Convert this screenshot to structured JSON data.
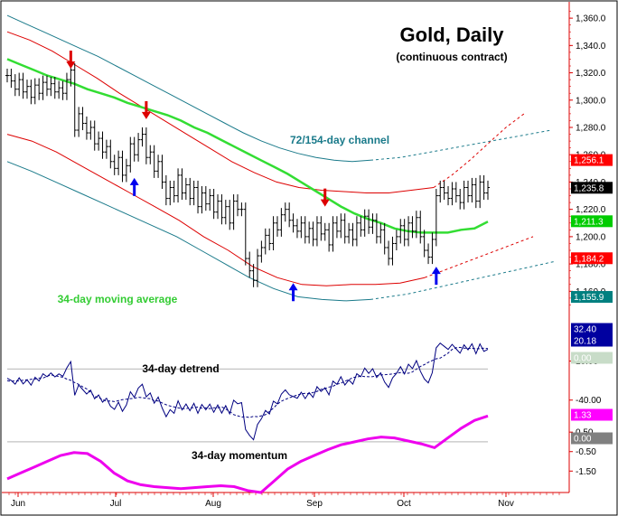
{
  "chart_data": {
    "type": "line",
    "title": "Gold, Daily",
    "subtitle": "(continuous contract)",
    "x_tick_labels": [
      "Jun",
      "Jul",
      "Aug",
      "Sep",
      "Oct",
      "Nov"
    ],
    "price_panel": {
      "ylim": [
        1145,
        1370
      ],
      "y_tick_labels": [
        "1,360.0",
        "1,340.0",
        "1,320.0",
        "1,300.0",
        "1,280.0",
        "1,260.0",
        "1,240.0",
        "1,220.0",
        "1,200.0",
        "1,180.0",
        "1,160.0"
      ],
      "y_ticks": [
        1360,
        1340,
        1320,
        1300,
        1280,
        1260,
        1240,
        1220,
        1200,
        1180,
        1160
      ],
      "annotations": {
        "channel": "72/154-day channel",
        "moving_average": "34-day moving average"
      },
      "value_tags": [
        {
          "text": "1,256.1",
          "value": 1256.1,
          "bg": "#ff0000",
          "fg": "#ffffff"
        },
        {
          "text": "1,235.8",
          "value": 1235.8,
          "bg": "#000000",
          "fg": "#ffffff"
        },
        {
          "text": "1,211.3",
          "value": 1211.3,
          "bg": "#00cc00",
          "fg": "#ffffff"
        },
        {
          "text": "1,184.2",
          "value": 1184.2,
          "bg": "#ff0000",
          "fg": "#ffffff"
        },
        {
          "text": "1,155.9",
          "value": 1155.9,
          "bg": "#008080",
          "fg": "#ffffff"
        }
      ],
      "ohlc_close": [
        1318,
        1314,
        1308,
        1315,
        1306,
        1310,
        1302,
        1311,
        1305,
        1313,
        1308,
        1312,
        1306,
        1309,
        1305,
        1315,
        1322,
        1278,
        1290,
        1283,
        1276,
        1280,
        1268,
        1272,
        1262,
        1266,
        1255,
        1250,
        1258,
        1245,
        1252,
        1268,
        1260,
        1271,
        1275,
        1258,
        1262,
        1248,
        1255,
        1240,
        1228,
        1236,
        1230,
        1245,
        1232,
        1238,
        1228,
        1236,
        1222,
        1232,
        1224,
        1230,
        1218,
        1226,
        1214,
        1222,
        1210,
        1226,
        1220,
        1220,
        1184,
        1175,
        1168,
        1186,
        1192,
        1201,
        1195,
        1210,
        1205,
        1216,
        1220,
        1212,
        1208,
        1204,
        1210,
        1200,
        1206,
        1198,
        1210,
        1202,
        1205,
        1194,
        1210,
        1204,
        1212,
        1200,
        1205,
        1198,
        1210,
        1205,
        1215,
        1207,
        1212,
        1200,
        1205,
        1192,
        1184,
        1195,
        1200,
        1208,
        1198,
        1210,
        1204,
        1214,
        1200,
        1190,
        1185,
        1198,
        1230,
        1236,
        1232,
        1228,
        1235,
        1230,
        1225,
        1236,
        1230,
        1238,
        1226,
        1240,
        1232,
        1236
      ],
      "ma34": [
        1330,
        1326,
        1322,
        1318,
        1315,
        1312,
        1308,
        1305,
        1302,
        1298,
        1295,
        1292,
        1289,
        1285,
        1280,
        1276,
        1271,
        1266,
        1261,
        1256,
        1251,
        1246,
        1240,
        1234,
        1228,
        1222,
        1217,
        1213,
        1210,
        1206,
        1204,
        1203,
        1203,
        1203,
        1205,
        1206,
        1211
      ],
      "upper_outer_channel": [
        1362,
        1356,
        1350,
        1344,
        1338,
        1332,
        1325,
        1318,
        1311,
        1304,
        1297,
        1290,
        1283,
        1276,
        1270,
        1265,
        1261,
        1258,
        1256,
        1255,
        1256,
        1258,
        1262,
        1266,
        1270,
        1274,
        1278
      ],
      "upper_inner_channel": [
        1350,
        1344,
        1336,
        1326,
        1316,
        1305,
        1295,
        1285,
        1275,
        1265,
        1255,
        1247,
        1240,
        1236,
        1234,
        1233,
        1232,
        1232,
        1234,
        1236,
        1245,
        1256,
        1268,
        1280,
        1290
      ],
      "lower_inner_channel": [
        1275,
        1270,
        1262,
        1252,
        1242,
        1232,
        1222,
        1212,
        1200,
        1190,
        1178,
        1170,
        1165,
        1164,
        1165,
        1165,
        1166,
        1170,
        1180,
        1190,
        1200
      ],
      "lower_outer_channel": [
        1255,
        1248,
        1240,
        1232,
        1224,
        1216,
        1208,
        1200,
        1190,
        1180,
        1170,
        1162,
        1156,
        1154,
        1153,
        1154,
        1158,
        1164,
        1170,
        1176,
        1182
      ]
    },
    "detrend_panel": {
      "label": "34-day detrend",
      "ylim": [
        -60,
        35
      ],
      "y_tick_labels": [
        "10.00",
        "-40.00"
      ],
      "y_ticks": [
        10,
        -40
      ],
      "value_tags": [
        {
          "text": "32.40",
          "value": 32.4,
          "bg": "#0000a0",
          "fg": "#ffffff"
        },
        {
          "text": "20.18",
          "value": 20.18,
          "bg": "#0000a0",
          "fg": "#ffffff"
        },
        {
          "text": "0.00",
          "value": 0,
          "bg": "#c8dcc8",
          "fg": "#ffffff"
        }
      ]
    },
    "momentum_panel": {
      "label": "34-day momentum",
      "ylim": [
        -2.6,
        1.9
      ],
      "y_tick_labels": [
        "0.50",
        "-0.50",
        "-1.50"
      ],
      "y_ticks": [
        0.5,
        -0.5,
        -1.5
      ],
      "value_tags": [
        {
          "text": "1.33",
          "value": 1.33,
          "bg": "#ff00ff",
          "fg": "#ffffff"
        },
        {
          "text": "0.00",
          "value": 0,
          "bg": "#808080",
          "fg": "#ffffff"
        }
      ],
      "values": [
        -1.9,
        -1.6,
        -1.3,
        -1.0,
        -0.7,
        -0.55,
        -0.6,
        -1.0,
        -1.6,
        -2.0,
        -2.2,
        -2.3,
        -2.35,
        -2.4,
        -2.35,
        -2.3,
        -2.25,
        -2.3,
        -2.5,
        -2.6,
        -2.0,
        -1.4,
        -1.0,
        -0.7,
        -0.4,
        -0.15,
        0.0,
        0.15,
        0.25,
        0.2,
        0.05,
        -0.1,
        -0.3,
        0.2,
        0.7,
        1.1,
        1.33
      ]
    },
    "colors": {
      "price_bars": "#000000",
      "ma34": "#33dd33",
      "inner_channel": "#dd0000",
      "outer_channel": "#1a7a8a",
      "detrend": "#000080",
      "momentum": "#ee00ee",
      "arrow_top": "#dd0000",
      "arrow_bottom": "#0000ee",
      "axis": "#dd0000"
    },
    "arrows": [
      {
        "dir": "down",
        "x_index": 16,
        "y": 1323
      },
      {
        "dir": "down",
        "x_index": 35,
        "y": 1286
      },
      {
        "dir": "up",
        "x_index": 32,
        "y": 1243
      },
      {
        "dir": "up",
        "x_index": 72,
        "y": 1166
      },
      {
        "dir": "down",
        "x_index": 80,
        "y": 1222
      },
      {
        "dir": "up",
        "x_index": 108,
        "y": 1178
      }
    ]
  }
}
